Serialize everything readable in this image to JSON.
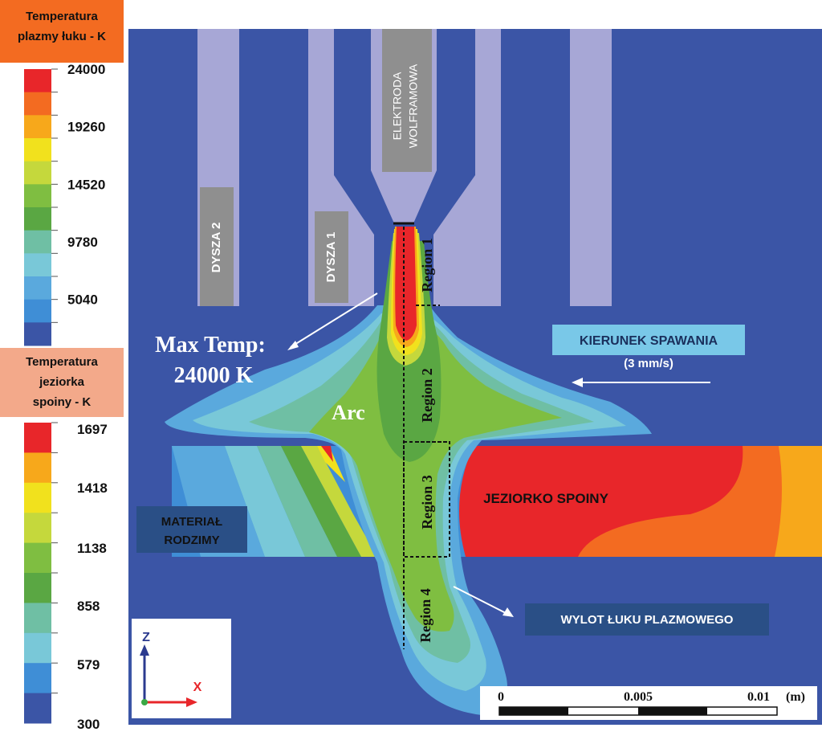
{
  "arc_legend": {
    "title_line1": "Temperatura",
    "title_line2": "plazmy łuku - K",
    "ticks": [
      "24000",
      "19260",
      "14520",
      "9780",
      "5040"
    ],
    "colors": [
      "#e8262a",
      "#f36b21",
      "#f7a81b",
      "#f1e11d",
      "#c5d83c",
      "#7fbe41",
      "#5aa743",
      "#6fbfa4",
      "#79c8d8",
      "#5aa9dd",
      "#3f8ed6",
      "#3b55a6"
    ]
  },
  "pool_legend": {
    "title_line1": "Temperatura",
    "title_line2": "jeziorka",
    "title_line3": "spoiny - K",
    "ticks": [
      "1697",
      "1418",
      "1138",
      "858",
      "579",
      "300"
    ],
    "colors": [
      "#e8262a",
      "#f7a81b",
      "#f1e11d",
      "#c5d83c",
      "#7fbe41",
      "#5aa743",
      "#6fbfa4",
      "#79c8d8",
      "#3f8ed6",
      "#3b55a6"
    ]
  },
  "labels": {
    "nozzle2": "DYSZA 2",
    "nozzle1": "DYSZA 1",
    "electrode_line1": "ELEKTRODA",
    "electrode_line2": "WOLFRAMOWA",
    "max_temp_line1": "Max Temp:",
    "max_temp_line2": "24000 K",
    "arc": "Arc",
    "welding_dir": "KIERUNEK SPAWANIA",
    "welding_speed": "(3 mm/s)",
    "weld_pool": "JEZIORKO SPOINY",
    "base_material_line1": "MATERIAŁ",
    "base_material_line2": "RODZIMY",
    "plasma_outlet": "WYLOT ŁUKU PLAZMOWEGO",
    "region1": "Region 1",
    "region2": "Region 2",
    "region3": "Region 3",
    "region4": "Region 4"
  },
  "axes": {
    "z": "Z",
    "x": "X"
  },
  "scale_bar": {
    "ticks": [
      "0",
      "0.005",
      "0.01"
    ],
    "unit": "(m)"
  },
  "colors": {
    "background": "#3b55a6",
    "nozzle": "#a7a7d6",
    "label_box": "#8f8f8f",
    "weld_pool": "#e8262a",
    "plasma_hot": "#e8262a",
    "arc_green": "#7fbe41"
  }
}
